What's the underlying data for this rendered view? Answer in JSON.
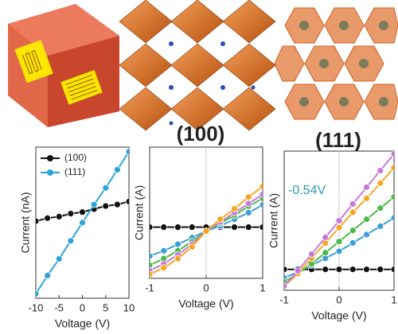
{
  "illustration": {
    "labels": [
      "(100)",
      "(111)"
    ]
  },
  "chart_data": [
    {
      "type": "line",
      "xlabel": "Voltage (V)",
      "ylabel": "Current (nA)",
      "xlim": [
        -10,
        10
      ],
      "ylim": [
        0,
        100
      ],
      "xticks": [
        -10,
        -5,
        0,
        5,
        10
      ],
      "legend": "upper left",
      "x": [
        -10,
        -7.5,
        -5,
        -2.5,
        0,
        2.5,
        5,
        7.5,
        10
      ],
      "series": [
        {
          "name": "(100)",
          "color": "#111111",
          "values": [
            51,
            53,
            54,
            56,
            57,
            59,
            61,
            62,
            64
          ]
        },
        {
          "name": "(111)",
          "color": "#2ea3d6",
          "values": [
            3,
            15,
            26,
            38,
            50,
            62,
            73,
            85,
            97
          ]
        }
      ]
    },
    {
      "type": "line",
      "xlabel": "Voltage (V)",
      "ylabel": "Current (A)",
      "xlim": [
        -1,
        1
      ],
      "ylim": [
        0,
        100
      ],
      "xticks": [
        -1,
        0,
        1
      ],
      "x": [
        -1,
        -0.75,
        -0.5,
        -0.25,
        0,
        0.25,
        0.5,
        0.75,
        1
      ],
      "series": [
        {
          "color": "#111111",
          "values": [
            39,
            39,
            39,
            39,
            39,
            39,
            39,
            39,
            39
          ]
        },
        {
          "color": "#3a9fd6",
          "values": [
            17,
            21,
            26,
            31,
            36,
            40,
            45,
            50,
            56
          ]
        },
        {
          "color": "#4cb848",
          "values": [
            10,
            15,
            21,
            28,
            36,
            42,
            48,
            55,
            61
          ]
        },
        {
          "color": "#c879d8",
          "values": [
            6,
            11,
            18,
            26,
            36,
            43,
            50,
            57,
            64
          ]
        },
        {
          "color": "#f5a623",
          "values": [
            3,
            8,
            15,
            24,
            36,
            45,
            53,
            62,
            70
          ]
        }
      ]
    },
    {
      "type": "line",
      "xlabel": "Voltage (V)",
      "ylabel": "Current (A)",
      "xlim": [
        -1,
        1
      ],
      "ylim": [
        0,
        100
      ],
      "xticks": [
        -1,
        0,
        1
      ],
      "annotation": "-0.54V",
      "x": [
        -1,
        -0.75,
        -0.5,
        -0.25,
        0,
        0.25,
        0.5,
        0.75,
        1
      ],
      "series": [
        {
          "color": "#111111",
          "values": [
            15,
            15,
            15,
            15,
            15,
            15,
            15,
            15,
            15
          ]
        },
        {
          "color": "#3a9fd6",
          "values": [
            9,
            13,
            18,
            23,
            28,
            34,
            40,
            46,
            52
          ]
        },
        {
          "color": "#4cb848",
          "values": [
            6,
            12,
            19,
            27,
            35,
            43,
            51,
            59,
            67
          ]
        },
        {
          "color": "#f5a623",
          "values": [
            3,
            12,
            23,
            34,
            45,
            56,
            66,
            77,
            88
          ]
        },
        {
          "color": "#c879d8",
          "values": [
            3,
            14,
            26,
            38,
            50,
            62,
            74,
            86,
            98
          ]
        }
      ]
    }
  ]
}
